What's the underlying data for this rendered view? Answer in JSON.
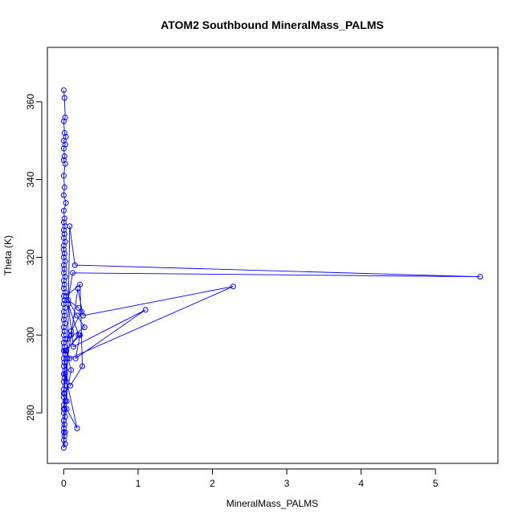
{
  "chart_data": {
    "type": "line",
    "title": "ATOM2 Southbound MineralMass_PALMS",
    "xlabel": "MineralMass_PALMS",
    "ylabel": "Theta (K)",
    "xlim": [
      -0.22,
      5.84
    ],
    "ylim": [
      267,
      374
    ],
    "xticks": [
      "0",
      "1",
      "2",
      "3",
      "4",
      "5"
    ],
    "yticks": [
      "280",
      "300",
      "320",
      "340",
      "360"
    ],
    "grid": false,
    "legend": "none",
    "colors": {
      "series": "#0000ff",
      "axis": "#000000",
      "background": "#ffffff"
    },
    "marker": "open-circle",
    "series": [
      {
        "x": [
          0.0,
          0.01,
          0.02,
          0.0,
          0.01,
          0.03,
          0.0,
          0.02,
          0.0,
          0.01,
          0.0,
          0.02,
          0.0,
          0.01,
          0.0,
          0.03,
          0.0,
          0.01,
          0.0,
          0.02,
          0.0,
          0.01,
          0.0,
          0.02,
          0.0,
          0.0,
          0.01,
          0.0,
          0.02,
          0.0,
          0.01,
          0.0,
          0.02,
          0.0,
          0.01,
          0.0,
          0.02,
          0.0,
          0.01,
          0.0,
          0.02,
          0.0,
          0.01,
          0.0,
          0.02,
          0.0,
          0.01,
          0.0,
          0.02,
          0.0,
          0.01,
          0.0,
          0.02,
          0.0,
          0.01,
          0.0,
          0.02,
          0.0,
          0.01,
          0.0,
          0.02,
          0.0,
          0.01,
          0.0,
          0.02,
          0.0,
          0.01,
          0.0,
          0.02,
          0.0,
          0.01,
          0.0,
          0.02,
          0.0,
          0.01,
          0.0,
          0.02,
          0.0,
          0.0,
          0.04,
          0.08,
          0.15,
          5.6,
          0.12,
          0.06,
          0.2,
          0.24,
          0.1,
          0.05,
          0.28,
          0.18,
          0.03,
          0.22,
          0.25,
          0.09,
          0.02,
          0.18,
          0.04,
          0.0,
          0.05,
          0.1,
          0.19,
          0.26,
          2.28,
          0.08,
          0.02,
          0.22,
          0.16,
          1.1,
          0.13,
          0.06,
          0.2,
          0.03,
          0.1,
          0.0,
          0.02,
          0.0
        ],
        "y": [
          363,
          361,
          356,
          355,
          352,
          351,
          350,
          349,
          348,
          346,
          345,
          344,
          341,
          338,
          336,
          334,
          332,
          330,
          329,
          328,
          327,
          326,
          325,
          324,
          323,
          322,
          321,
          320,
          319,
          318,
          317,
          316,
          315,
          314,
          313,
          312,
          311,
          310,
          309,
          308,
          307,
          306,
          305,
          304,
          303,
          302,
          301,
          300,
          299,
          298,
          297,
          296,
          295,
          294,
          293,
          292,
          291,
          290,
          289,
          288,
          287,
          286,
          285,
          284,
          283,
          282,
          281,
          280,
          279,
          278,
          277,
          276,
          275,
          275,
          274,
          273,
          272,
          271,
          278,
          283,
          328,
          318,
          315,
          316,
          309,
          307,
          306,
          301,
          299,
          302,
          305,
          310,
          313,
          292,
          287,
          290,
          276,
          281,
          285,
          294,
          300,
          312,
          305,
          312.5,
          294,
          296,
          300,
          294,
          306.5,
          297,
          308,
          300,
          296,
          291,
          281,
          295,
          298
        ]
      }
    ]
  }
}
